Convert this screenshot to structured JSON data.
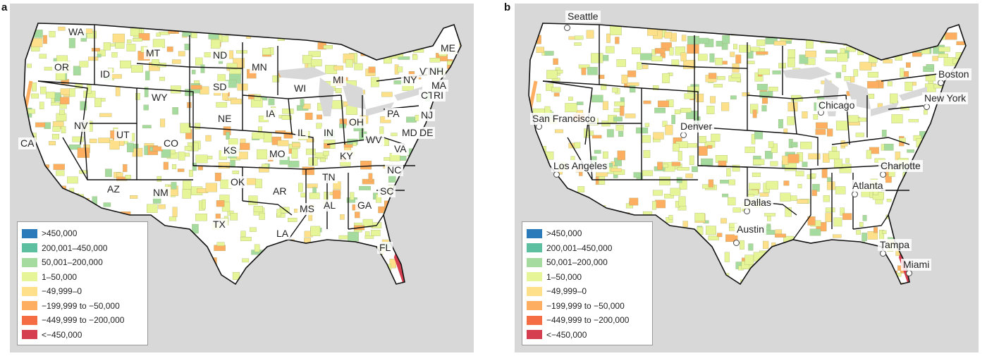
{
  "panel_a": {
    "letter": "a",
    "state_labels": [
      {
        "id": "wa",
        "text": "WA"
      },
      {
        "id": "or",
        "text": "OR"
      },
      {
        "id": "id",
        "text": "ID"
      },
      {
        "id": "mt",
        "text": "MT"
      },
      {
        "id": "wy",
        "text": "WY"
      },
      {
        "id": "nd",
        "text": "ND"
      },
      {
        "id": "sd",
        "text": "SD"
      },
      {
        "id": "mn",
        "text": "MN"
      },
      {
        "id": "wi",
        "text": "WI"
      },
      {
        "id": "mi",
        "text": "MI"
      },
      {
        "id": "ne",
        "text": "NE"
      },
      {
        "id": "ia",
        "text": "IA"
      },
      {
        "id": "il",
        "text": "IL"
      },
      {
        "id": "in",
        "text": "IN"
      },
      {
        "id": "oh",
        "text": "OH"
      },
      {
        "id": "ny",
        "text": "NY"
      },
      {
        "id": "vt",
        "text": "VT"
      },
      {
        "id": "nh",
        "text": "NH"
      },
      {
        "id": "me",
        "text": "ME"
      },
      {
        "id": "ma",
        "text": "MA"
      },
      {
        "id": "ct",
        "text": "CT"
      },
      {
        "id": "ri",
        "text": "RI"
      },
      {
        "id": "pa",
        "text": "PA"
      },
      {
        "id": "nj",
        "text": "NJ"
      },
      {
        "id": "md",
        "text": "MD"
      },
      {
        "id": "de",
        "text": "DE"
      },
      {
        "id": "wv",
        "text": "WV"
      },
      {
        "id": "va",
        "text": "VA"
      },
      {
        "id": "nc",
        "text": "NC"
      },
      {
        "id": "sc",
        "text": "SC"
      },
      {
        "id": "ga",
        "text": "GA"
      },
      {
        "id": "fl",
        "text": "FL"
      },
      {
        "id": "al",
        "text": "AL"
      },
      {
        "id": "ms",
        "text": "MS"
      },
      {
        "id": "tn",
        "text": "TN"
      },
      {
        "id": "ky",
        "text": "KY"
      },
      {
        "id": "la",
        "text": "LA"
      },
      {
        "id": "ar",
        "text": "AR"
      },
      {
        "id": "mo",
        "text": "MO"
      },
      {
        "id": "ks",
        "text": "KS"
      },
      {
        "id": "ok",
        "text": "OK"
      },
      {
        "id": "tx",
        "text": "TX"
      },
      {
        "id": "nm",
        "text": "NM"
      },
      {
        "id": "co",
        "text": "CO"
      },
      {
        "id": "ut",
        "text": "UT"
      },
      {
        "id": "az",
        "text": "AZ"
      },
      {
        "id": "nv",
        "text": "NV"
      },
      {
        "id": "ca",
        "text": "CA"
      }
    ]
  },
  "panel_b": {
    "letter": "b",
    "city_labels": [
      {
        "id": "seattle",
        "text": "Seattle"
      },
      {
        "id": "boston",
        "text": "Boston"
      },
      {
        "id": "new-york",
        "text": "New York"
      },
      {
        "id": "chicago",
        "text": "Chicago"
      },
      {
        "id": "san-francisco",
        "text": "San Francisco"
      },
      {
        "id": "denver",
        "text": "Denver"
      },
      {
        "id": "los-angeles",
        "text": "Los Angeles"
      },
      {
        "id": "charlotte",
        "text": "Charlotte"
      },
      {
        "id": "atlanta",
        "text": "Atlanta"
      },
      {
        "id": "dallas",
        "text": "Dallas"
      },
      {
        "id": "austin",
        "text": "Austin"
      },
      {
        "id": "tampa",
        "text": "Tampa"
      },
      {
        "id": "miami",
        "text": "Miami"
      }
    ]
  },
  "legend": [
    {
      "label": ">450,000",
      "color": "#2b7bba"
    },
    {
      "label": "200,001–450,000",
      "color": "#5cc0a0"
    },
    {
      "label": "50,001–200,000",
      "color": "#a6dba0"
    },
    {
      "label": "1–50,000",
      "color": "#e6f598"
    },
    {
      "label": "−49,999–0",
      "color": "#fee08b"
    },
    {
      "label": "−199,999 to −50,000",
      "color": "#fdae61"
    },
    {
      "label": "−449,999 to −200,000",
      "color": "#f46d43"
    },
    {
      "label": "<−450,000",
      "color": "#d53e4f"
    }
  ],
  "colors": {
    "ocean": "#d8d8d8",
    "land": "#ffffff",
    "border": "#111111",
    "county": "#e6f598"
  }
}
